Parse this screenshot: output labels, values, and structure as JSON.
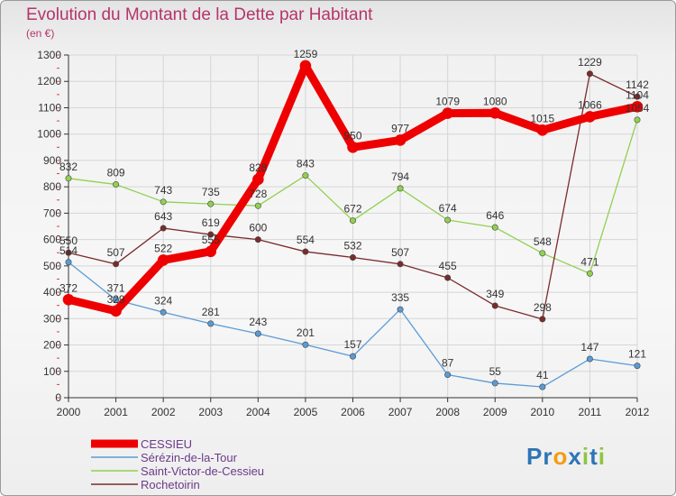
{
  "chart_data": {
    "type": "line",
    "title": "Evolution du Montant de la Dette par Habitant",
    "unit_label": "(en €)",
    "x": [
      "2000",
      "2001",
      "2002",
      "2003",
      "2004",
      "2005",
      "2006",
      "2007",
      "2008",
      "2009",
      "2010",
      "2011",
      "2012"
    ],
    "ylim": [
      0,
      1300
    ],
    "yticks": [
      0,
      100,
      200,
      300,
      400,
      500,
      600,
      700,
      800,
      900,
      1000,
      1100,
      1200,
      1300
    ],
    "grid": true,
    "legend_position": "bottom-left",
    "series": [
      {
        "name": "CESSIEU",
        "color": "#ee0000",
        "values": [
          372,
          329,
          522,
          555,
          828,
          1259,
          950,
          977,
          1079,
          1080,
          1015,
          1066,
          1104
        ]
      },
      {
        "name": "Sérézin-de-la-Tour",
        "color": "#5b9bd5",
        "values": [
          514,
          371,
          324,
          281,
          243,
          201,
          157,
          335,
          87,
          55,
          41,
          147,
          121
        ]
      },
      {
        "name": "Saint-Victor-de-Cessieu",
        "color": "#92d050",
        "values": [
          832,
          809,
          743,
          735,
          728,
          843,
          672,
          794,
          674,
          646,
          548,
          471,
          1054
        ]
      },
      {
        "name": "Rochetoirin",
        "color": "#7b2b2b",
        "values": [
          550,
          507,
          643,
          619,
          600,
          554,
          532,
          507,
          455,
          349,
          298,
          1229,
          1142
        ]
      }
    ]
  },
  "logo": {
    "letters": [
      "P",
      "r",
      "o",
      "x",
      "i",
      "t",
      "i"
    ],
    "colors": [
      "#2e75b6",
      "#2e75b6",
      "#f39c12",
      "#2e75b6",
      "#8dc63f",
      "#2e75b6",
      "#8dc63f"
    ]
  }
}
